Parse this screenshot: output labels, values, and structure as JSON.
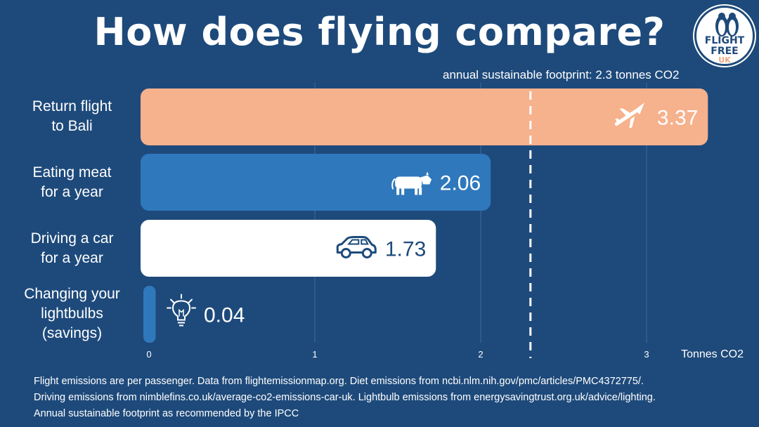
{
  "title": "How does flying compare?",
  "logo": {
    "line1": "FLIGHT",
    "line2": "FREE",
    "line3": "UK"
  },
  "footprint_note": "annual sustainable footprint: 2.3 tonnes CO2",
  "colors": {
    "background": "#1e4a7b",
    "flight": "#f6b18d",
    "meat": "#2f78bc",
    "car": "#ffffff",
    "lightbulbs": "#2f78bc",
    "ink": "#1e4a7b"
  },
  "chart_data": {
    "type": "bar",
    "orientation": "horizontal",
    "categories": [
      "Return flight\nto Bali",
      "Eating meat\nfor a year",
      "Driving a car\nfor a year",
      "Changing your\nlightbulbs\n(savings)"
    ],
    "values": [
      3.37,
      2.06,
      1.73,
      0.04
    ],
    "data_labels": [
      "3.37",
      "2.06",
      "1.73",
      "0.04"
    ],
    "icons": [
      "airplane-icon",
      "cow-icon",
      "car-icon",
      "lightbulb-icon"
    ],
    "xlabel": "Tonnes CO2",
    "xticks": [
      0,
      1,
      2,
      3
    ],
    "xtick_labels": [
      "0",
      "1",
      "2",
      "3"
    ],
    "xlim": [
      0,
      3.4
    ],
    "reference_line": {
      "value": 2.3,
      "style": "dashed"
    },
    "grid": true
  },
  "sources": [
    "Flight emissions are per passenger. Data from flightemissionmap.org. Diet emissions from ncbi.nlm.nih.gov/pmc/articles/PMC4372775/.",
    "Driving emissions from nimblefins.co.uk/average-co2-emissions-car-uk. Lightbulb emissions from energysavingtrust.org.uk/advice/lighting.",
    "Annual sustainable footprint as recommended by the IPCC"
  ]
}
